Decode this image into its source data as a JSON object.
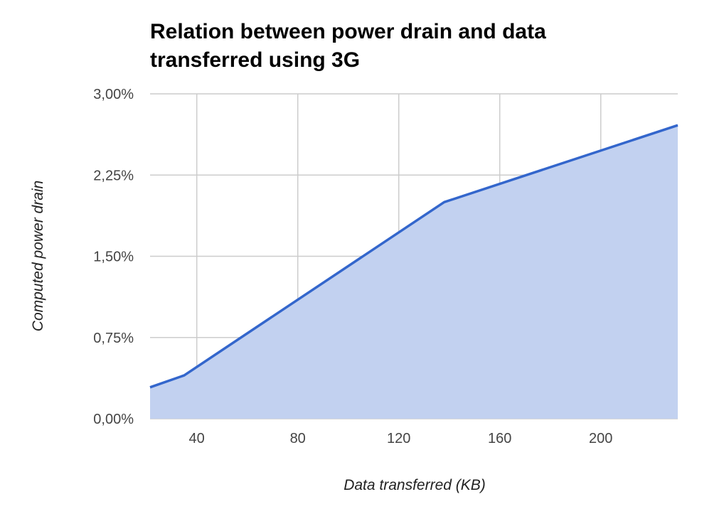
{
  "chart_data": {
    "type": "area",
    "title_lines": [
      "Relation between power drain and data",
      "transferred using 3G"
    ],
    "xlabel": "Data transferred (KB)",
    "ylabel": "Computed power drain",
    "xlim": [
      21.5,
      230.5
    ],
    "ylim": [
      0,
      3
    ],
    "x_ticks": [
      {
        "value": 40,
        "label": "40"
      },
      {
        "value": 80,
        "label": "80"
      },
      {
        "value": 120,
        "label": "120"
      },
      {
        "value": 160,
        "label": "160"
      },
      {
        "value": 200,
        "label": "200"
      }
    ],
    "y_ticks": [
      {
        "value": 0,
        "label": "0,00%"
      },
      {
        "value": 0.75,
        "label": "0,75%"
      },
      {
        "value": 1.5,
        "label": "1,50%"
      },
      {
        "value": 2.25,
        "label": "2,25%"
      },
      {
        "value": 3,
        "label": "3,00%"
      }
    ],
    "series": [
      {
        "x": [
          21.5,
          35,
          138,
          230.5
        ],
        "y": [
          0.29,
          0.4,
          2.0,
          2.71
        ]
      }
    ],
    "grid": true,
    "legend": "none",
    "colors": {
      "line": "#3366cc",
      "fill": "#c2d1f0",
      "grid": "#cccccc",
      "title": "#000000",
      "tick": "#444444"
    }
  }
}
